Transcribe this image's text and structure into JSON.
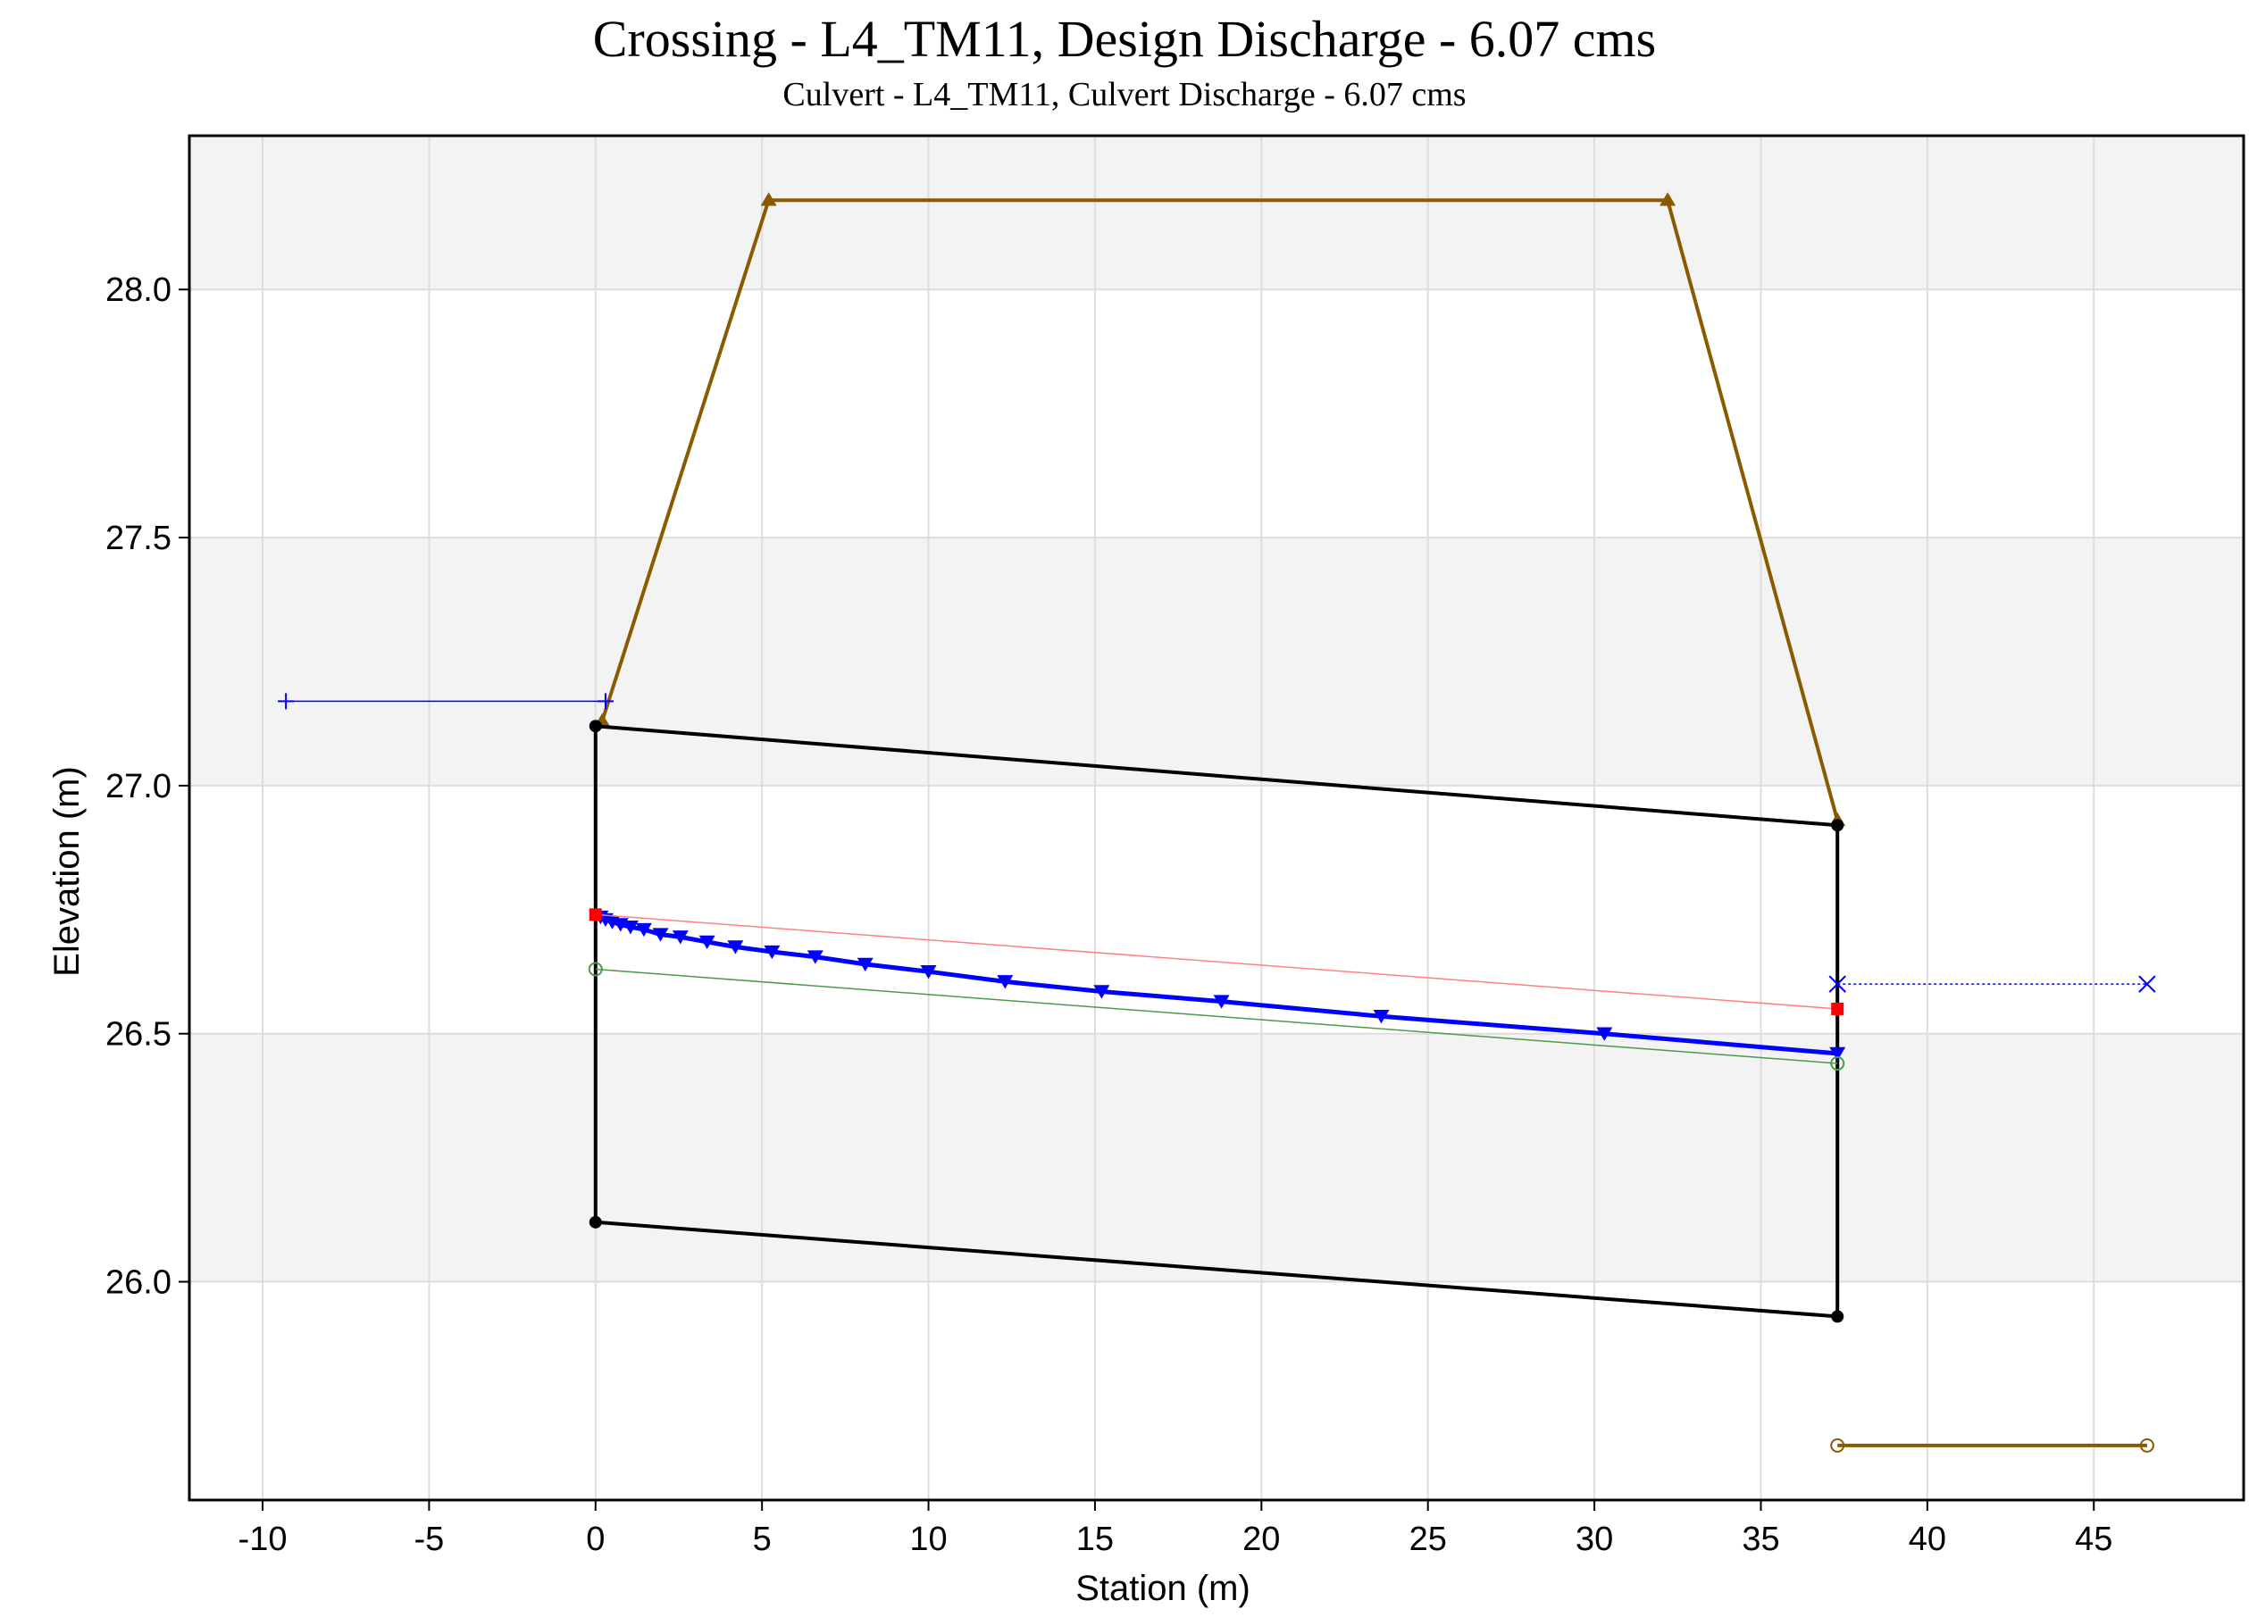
{
  "chart_data": {
    "type": "line",
    "title": "Crossing - L4_TM11, Design Discharge - 6.07 cms",
    "subtitle": "Culvert - L4_TM11, Culvert Discharge - 6.07 cms",
    "xlabel": "Station (m)",
    "ylabel": "Elevation (m)",
    "xlim": [
      -12.2,
      49.5
    ],
    "ylim": [
      25.56,
      28.31
    ],
    "xticks": [
      -10,
      -5,
      0,
      5,
      10,
      15,
      20,
      25,
      30,
      35,
      40,
      45
    ],
    "yticks": [
      26.0,
      26.5,
      27.0,
      27.5,
      28.0
    ],
    "grid": true,
    "legend": "none",
    "series": [
      {
        "key": "embankment",
        "color": "#8B5A00",
        "marker": "triangle",
        "x": [
          0.2,
          5.2,
          32.2,
          37.3
        ],
        "y": [
          27.13,
          28.18,
          28.18,
          26.93
        ]
      },
      {
        "key": "culvert_top",
        "color": "#000000",
        "marker": "dot",
        "x": [
          0.0,
          37.3
        ],
        "y": [
          27.12,
          26.92
        ]
      },
      {
        "key": "culvert_bottom",
        "color": "#000000",
        "marker": "dot",
        "x": [
          0.0,
          37.3
        ],
        "y": [
          26.12,
          25.93
        ]
      },
      {
        "key": "culvert_inlet_wall",
        "color": "#000000",
        "marker": "none",
        "x": [
          0.0,
          0.0
        ],
        "y": [
          26.12,
          27.12
        ]
      },
      {
        "key": "culvert_outlet_wall",
        "color": "#000000",
        "marker": "none",
        "x": [
          37.3,
          37.3
        ],
        "y": [
          25.93,
          26.92
        ]
      },
      {
        "key": "water_surface",
        "color": "#0000FF",
        "marker": "inverted-triangle",
        "x": [
          0.0,
          0.15,
          0.3,
          0.5,
          0.75,
          1.05,
          1.45,
          1.95,
          2.55,
          3.35,
          4.2,
          5.3,
          6.6,
          8.1,
          10.0,
          12.3,
          15.2,
          18.8,
          23.6,
          30.3,
          37.3
        ],
        "y": [
          26.74,
          26.735,
          26.73,
          26.725,
          26.72,
          26.715,
          26.71,
          26.7,
          26.695,
          26.685,
          26.675,
          26.665,
          26.655,
          26.64,
          26.625,
          26.605,
          26.585,
          26.565,
          26.535,
          26.5,
          26.46
        ]
      },
      {
        "key": "energy_grade",
        "color": "#FF8080",
        "marker": "square",
        "x": [
          0.0,
          37.3
        ],
        "y": [
          26.74,
          26.55
        ]
      },
      {
        "key": "critical_depth",
        "color": "#4C9A4C",
        "marker": "circle",
        "x": [
          0.0,
          37.3
        ],
        "y": [
          26.63,
          26.44
        ]
      },
      {
        "key": "headwater",
        "color": "#0000FF",
        "marker": "plus",
        "x": [
          -9.3,
          0.3
        ],
        "y": [
          27.17,
          27.17
        ]
      },
      {
        "key": "tailwater",
        "color": "#0000FF",
        "marker": "x",
        "x": [
          37.3,
          46.6
        ],
        "y": [
          26.6,
          26.6
        ]
      },
      {
        "key": "outlet_channel",
        "color": "#8B5A00",
        "marker": "circle",
        "x": [
          37.3,
          46.6
        ],
        "y": [
          25.67,
          25.67
        ]
      }
    ]
  }
}
